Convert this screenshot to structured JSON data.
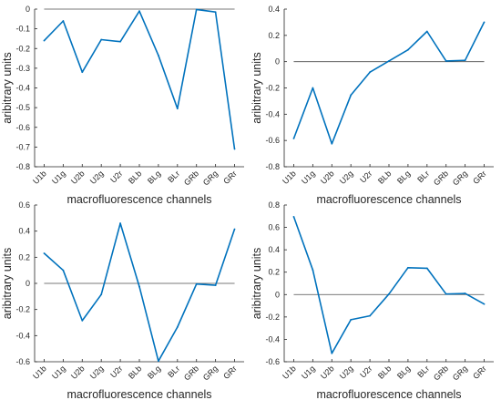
{
  "chart_data": [
    {
      "type": "line",
      "categories": [
        "U1b",
        "U1g",
        "U2b",
        "U2g",
        "U2r",
        "BLb",
        "BLg",
        "BLr",
        "GRb",
        "GRg",
        "GRr"
      ],
      "series": [
        {
          "values": [
            -0.16,
            -0.06,
            -0.32,
            -0.155,
            -0.165,
            -0.01,
            -0.235,
            -0.505,
            -0.002,
            -0.015,
            -0.71
          ]
        }
      ],
      "reference_line": 0,
      "xlabel": "macrofluorescence channels",
      "ylabel": "aribitrary units",
      "ylim": [
        -0.8,
        0
      ],
      "yticks": [
        0,
        -0.1,
        -0.2,
        -0.3,
        -0.4,
        -0.5,
        -0.6,
        -0.7,
        -0.8
      ],
      "ytick_labels": [
        "0",
        "-0.1",
        "-0.2",
        "-0.3",
        "-0.4",
        "-0.5",
        "-0.6",
        "-0.7",
        "-0.8"
      ],
      "line_color": "#0072bd"
    },
    {
      "type": "line",
      "categories": [
        "U1b",
        "U1g",
        "U2b",
        "U2g",
        "U2r",
        "BLb",
        "BLg",
        "BLr",
        "GRb",
        "GRg",
        "GRr"
      ],
      "series": [
        {
          "values": [
            -0.585,
            -0.2,
            -0.625,
            -0.255,
            -0.08,
            0.005,
            0.09,
            0.23,
            0.005,
            0.01,
            0.3
          ]
        }
      ],
      "reference_line": 0,
      "xlabel": "macrofluorescence channels",
      "ylabel": "aribitrary units",
      "ylim": [
        -0.8,
        0.4
      ],
      "yticks": [
        0.4,
        0.2,
        0,
        -0.2,
        -0.4,
        -0.6,
        -0.8
      ],
      "ytick_labels": [
        "0.4",
        "0.2",
        "0",
        "-0.2",
        "-0.4",
        "-0.6",
        "-0.8"
      ],
      "line_color": "#0072bd"
    },
    {
      "type": "line",
      "categories": [
        "U1b",
        "U1g",
        "U2b",
        "U2g",
        "U2r",
        "BLb",
        "BLg",
        "BLr",
        "GRb",
        "GRg",
        "GRr"
      ],
      "series": [
        {
          "values": [
            0.23,
            0.1,
            -0.285,
            -0.085,
            0.46,
            -0.025,
            -0.595,
            -0.335,
            -0.005,
            -0.015,
            0.415
          ]
        }
      ],
      "reference_line": 0,
      "xlabel": "macrofluorescence channels",
      "ylabel": "aribitrary units",
      "ylim": [
        -0.6,
        0.6
      ],
      "yticks": [
        0.6,
        0.4,
        0.2,
        0,
        -0.2,
        -0.4,
        -0.6
      ],
      "ytick_labels": [
        "0.6",
        "0.4",
        "0.2",
        "0",
        "-0.2",
        "-0.4",
        "-0.6"
      ],
      "line_color": "#0072bd"
    },
    {
      "type": "line",
      "categories": [
        "U1b",
        "U1g",
        "U2b",
        "U2g",
        "U2r",
        "BLb",
        "BLg",
        "BLr",
        "GRb",
        "GRg",
        "GRr"
      ],
      "series": [
        {
          "values": [
            0.695,
            0.22,
            -0.525,
            -0.225,
            -0.19,
            0.005,
            0.24,
            0.235,
            0.005,
            0.01,
            -0.085
          ]
        }
      ],
      "reference_line": 0,
      "xlabel": "macrofluorescence channels",
      "ylabel": "aribitrary units",
      "ylim": [
        -0.6,
        0.8
      ],
      "yticks": [
        0.8,
        0.6,
        0.4,
        0.2,
        0,
        -0.2,
        -0.4,
        -0.6
      ],
      "ytick_labels": [
        "0.8",
        "0.6",
        "0.4",
        "0.2",
        "0",
        "-0.2",
        "-0.4",
        "-0.6"
      ],
      "line_color": "#0072bd"
    }
  ]
}
